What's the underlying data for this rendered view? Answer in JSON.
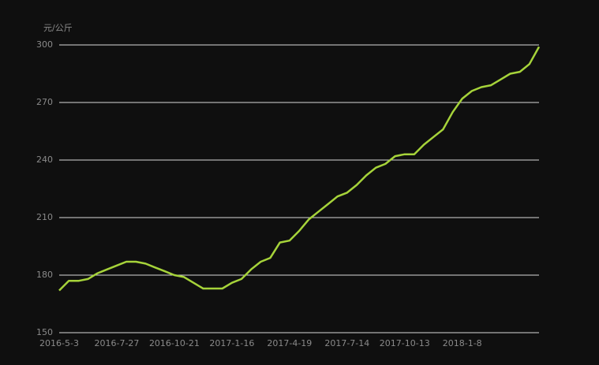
{
  "chart_data": {
    "type": "line",
    "y_label": "元/公斤",
    "categories": [
      "2016-5-3",
      null,
      null,
      null,
      null,
      null,
      "2016-7-27",
      null,
      null,
      null,
      null,
      null,
      "2016-10-21",
      null,
      null,
      null,
      null,
      null,
      "2017-1-16",
      null,
      null,
      null,
      null,
      null,
      "2017-4-19",
      null,
      null,
      null,
      null,
      null,
      "2017-7-14",
      null,
      null,
      null,
      null,
      null,
      "2017-10-13",
      null,
      null,
      null,
      null,
      null,
      "2018-1-8",
      null,
      null,
      null,
      null,
      null,
      null,
      null,
      null
    ],
    "series": [
      {
        "color": "#a6d33a",
        "values": [
          172,
          177,
          177,
          178,
          181,
          183,
          185,
          187,
          187,
          186,
          184,
          182,
          180,
          179,
          176,
          173,
          173,
          173,
          176,
          178,
          183,
          187,
          189,
          197,
          198,
          203,
          209,
          213,
          217,
          221,
          223,
          227,
          232,
          236,
          238,
          242,
          243,
          243,
          248,
          252,
          256,
          265,
          272,
          276,
          278,
          279,
          282,
          285,
          286,
          290,
          299
        ]
      }
    ],
    "ylim": [
      150,
      300
    ],
    "yticks": [
      150,
      180,
      210,
      240,
      270,
      300
    ],
    "grid": true
  }
}
